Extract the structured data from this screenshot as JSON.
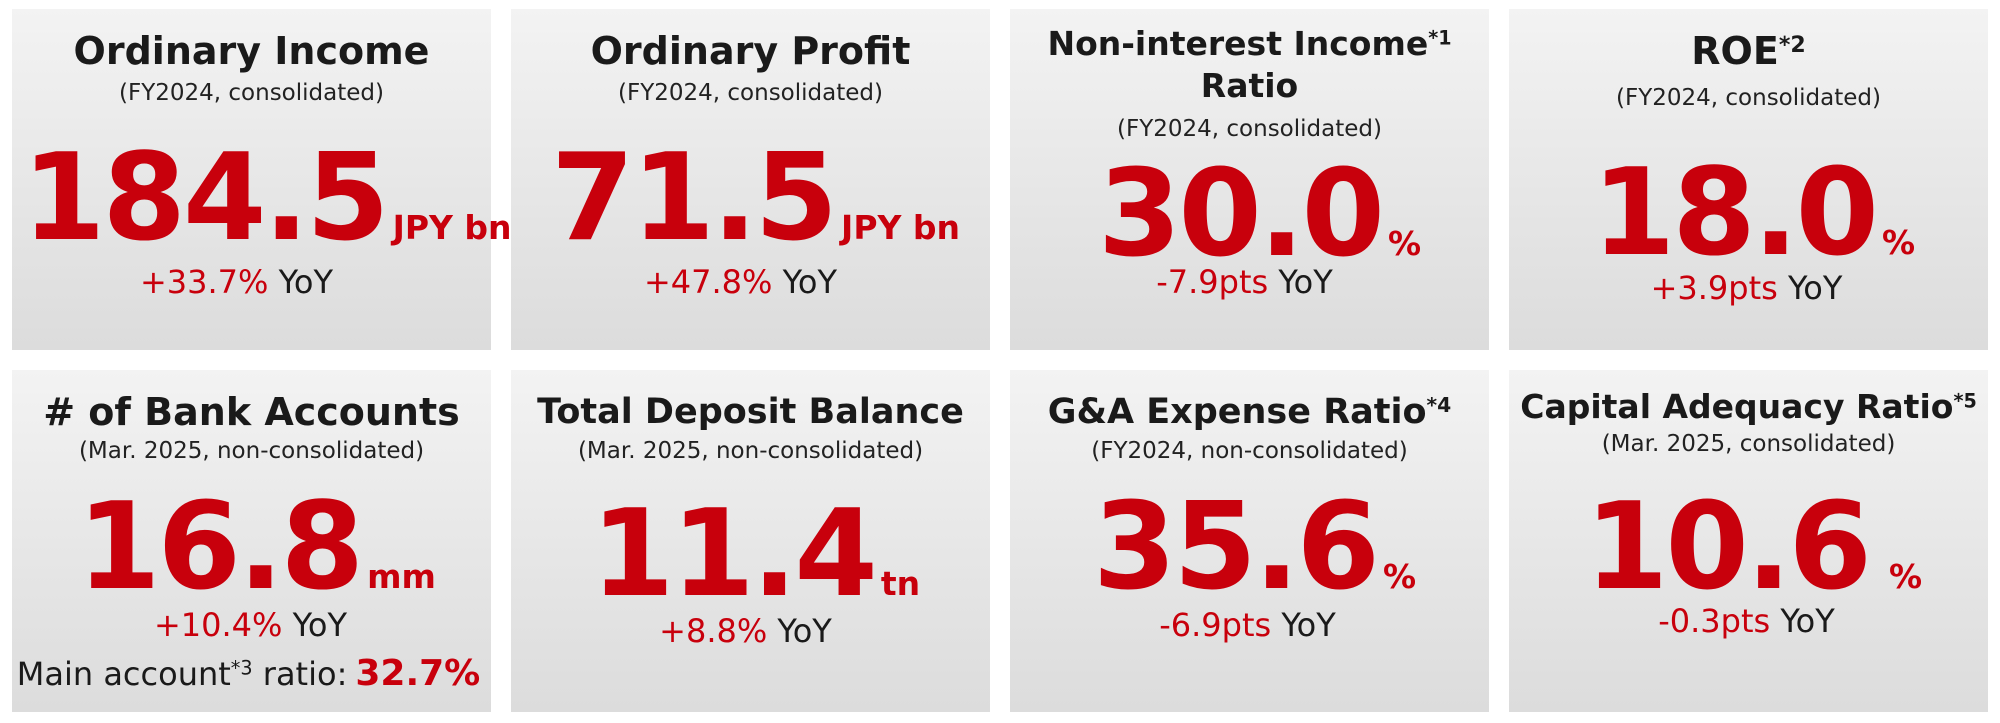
{
  "cards": [
    {
      "title": "Ordinary Income",
      "subtitle": "(FY2024, consolidated)",
      "value": "184.5",
      "unit": "JPY bn",
      "change": "+33.7%",
      "yoy": "YoY"
    },
    {
      "title": "Ordinary Profit",
      "subtitle": "(FY2024, consolidated)",
      "value": "71.5",
      "unit": "JPY bn",
      "change": "+47.8%",
      "yoy": "YoY"
    },
    {
      "title_line1": "Non-interest Income",
      "title_note": "*1",
      "title_line2": "Ratio",
      "subtitle": "(FY2024, consolidated)",
      "value": "30.0",
      "unit": "%",
      "change": "-7.9pts",
      "yoy": "YoY"
    },
    {
      "title": "ROE",
      "title_note": "*2",
      "subtitle": "(FY2024, consolidated)",
      "value": "18.0",
      "unit": "%",
      "change": "+3.9pts",
      "yoy": "YoY"
    },
    {
      "title": "# of Bank Accounts",
      "subtitle": "(Mar. 2025, non-consolidated)",
      "value": "16.8",
      "unit": "mm",
      "change": "+10.4%",
      "yoy": "YoY",
      "extra_label": "Main account",
      "extra_note": "*3",
      "extra_suffix": " ratio:",
      "extra_value": "32.7%"
    },
    {
      "title": "Total Deposit Balance",
      "subtitle": "(Mar. 2025, non-consolidated)",
      "value": "11.4",
      "unit": "tn",
      "change": "+8.8%",
      "yoy": "YoY"
    },
    {
      "title": "G&A Expense Ratio",
      "title_note": "*4",
      "subtitle": "(FY2024, non-consolidated)",
      "value": "35.6",
      "unit": "%",
      "change": "-6.9pts",
      "yoy": "YoY"
    },
    {
      "title": "Capital Adequacy Ratio",
      "title_note": "*5",
      "subtitle": "(Mar. 2025, consolidated)",
      "value": "10.6",
      "unit": "%",
      "change": "-0.3pts",
      "yoy": "YoY"
    }
  ],
  "colors": {
    "accent": "#c8000c",
    "text": "#1a1a1a",
    "card_bg": "#e6e6e6"
  }
}
